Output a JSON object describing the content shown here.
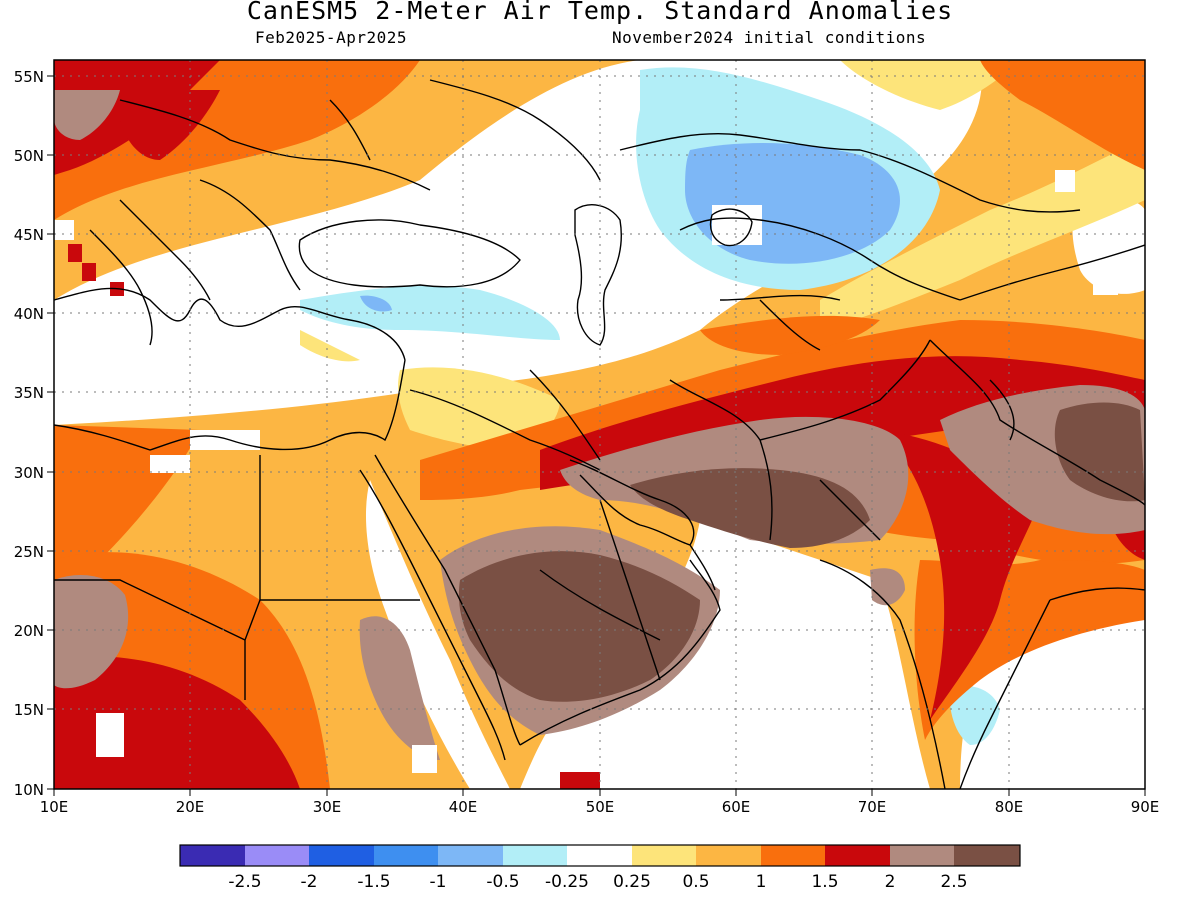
{
  "header": {
    "title": "CanESM5 2-Meter Air Temp. Standard Anomalies",
    "period": "Feb2025-Apr2025",
    "init": "November2024 initial conditions"
  },
  "axes": {
    "lon": {
      "min": 10,
      "max": 90,
      "ticks": [
        "10E",
        "20E",
        "30E",
        "40E",
        "50E",
        "60E",
        "70E",
        "80E",
        "90E"
      ]
    },
    "lat": {
      "min": 10,
      "max": 56,
      "ticks": [
        "10N",
        "15N",
        "20N",
        "25N",
        "30N",
        "35N",
        "40N",
        "45N",
        "50N",
        "55N"
      ]
    },
    "grid": "dotted"
  },
  "colorbar": {
    "colors": [
      "#3a2bb3",
      "#9a8cf7",
      "#1f5fe3",
      "#3e8ff0",
      "#7db7f6",
      "#b2eef7",
      "#ffffff",
      "#fde47a",
      "#fcb643",
      "#f96f0d",
      "#c9080c",
      "#b08a7f",
      "#7a5044"
    ],
    "labels": [
      "-2.5",
      "-2",
      "-1.5",
      "-1",
      "-0.5",
      "-0.25",
      "0.25",
      "0.5",
      "1",
      "1.5",
      "2",
      "2.5"
    ]
  }
}
